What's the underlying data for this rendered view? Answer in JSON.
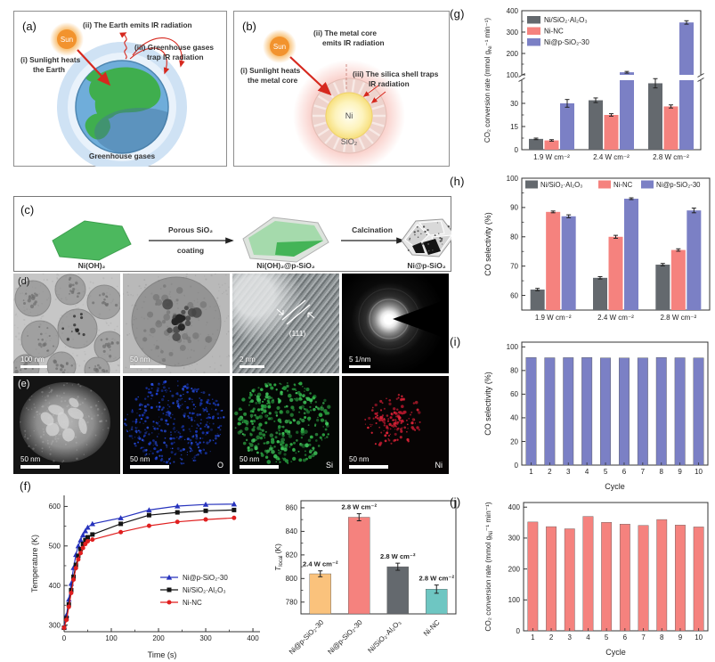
{
  "colors": {
    "gray": "#64696e",
    "salmon": "#f5827e",
    "blue": "#7b80c5",
    "orange": "#fac27c",
    "teal": "#6ec6c2",
    "line_blue": "#2733bd",
    "line_black": "#141414",
    "line_red": "#e01f1f",
    "arrow_red": "#d6281e"
  },
  "panel_a": {
    "label": "(a)",
    "sun": "Sun",
    "cap_ii": "(ii) The Earth emits IR radiation",
    "cap_iii_1": "(iii) Greenhouse gases",
    "cap_iii_2": "trap IR radiation",
    "cap_i_1": "(i) Sunlight heats",
    "cap_i_2": "the Earth",
    "bottom": "Greenhouse gases"
  },
  "panel_b": {
    "label": "(b)",
    "sun": "Sun",
    "cap_ii_1": "(ii) The metal core",
    "cap_ii_2": "emits IR radiation",
    "cap_i_1": "(i) Sunlight heats",
    "cap_i_2": "the metal core",
    "cap_iii_1": "(iii) The silica shell traps",
    "cap_iii_2": "IR radiation",
    "core": "Ni",
    "shell": "SiO₂"
  },
  "panel_c": {
    "label": "(c)",
    "s1": "Ni(OH)₂",
    "arrow1_top": "Porous SiO₂",
    "arrow1_bottom": "coating",
    "s2": "Ni(OH)₂@p-SiO₂",
    "arrow2_top": "Calcination",
    "s3": "Ni@p-SiO₂"
  },
  "panel_d": {
    "label": "(d)",
    "scalebars": [
      "100 nm",
      "50 nm",
      "2 nm",
      "5 1/nm"
    ],
    "annotation": "(111)"
  },
  "panel_e": {
    "label": "(e)",
    "scalebars": [
      "50 nm",
      "50 nm",
      "50 nm",
      "50 nm"
    ],
    "elements": [
      "",
      "O",
      "Si",
      "Ni"
    ]
  },
  "panel_f": {
    "label": "(f)"
  },
  "panel_g": {
    "label": "(g)"
  },
  "panel_h": {
    "label": "(h)"
  },
  "panel_i": {
    "label": "(i)"
  },
  "panel_j": {
    "label": "(j)"
  },
  "chart_data": [
    {
      "id": "f_line",
      "type": "line",
      "xlabel": "Time (s)",
      "ylabel": "Temperature (K)",
      "xlim": [
        0,
        415
      ],
      "ylim": [
        283,
        628
      ],
      "xticks": [
        0,
        100,
        200,
        300,
        400
      ],
      "xminor": [
        50,
        150,
        250,
        350
      ],
      "yticks": [
        300,
        400,
        500,
        600
      ],
      "yminor": [
        350,
        450,
        550
      ],
      "x": [
        0,
        5,
        10,
        15,
        20,
        25,
        30,
        35,
        40,
        45,
        50,
        60,
        120,
        180,
        240,
        300,
        360
      ],
      "series": [
        {
          "name": "Ni@p-SiO₂-30",
          "color": "line_blue",
          "marker": "triangle",
          "y": [
            295,
            325,
            365,
            405,
            445,
            478,
            500,
            515,
            528,
            538,
            547,
            556,
            571,
            591,
            601,
            605,
            606
          ]
        },
        {
          "name": "Ni/SiO₂·Al₂O₃",
          "color": "line_black",
          "marker": "square",
          "y": [
            293,
            317,
            352,
            388,
            422,
            452,
            475,
            492,
            505,
            515,
            522,
            529,
            556,
            578,
            585,
            589,
            591
          ]
        },
        {
          "name": "Ni-NC",
          "color": "line_red",
          "marker": "circle",
          "y": [
            293,
            313,
            346,
            381,
            415,
            444,
            466,
            482,
            495,
            505,
            512,
            516,
            535,
            551,
            561,
            567,
            571
          ]
        }
      ]
    },
    {
      "id": "f_bar",
      "type": "bar",
      "ylabel_segments": [
        {
          "t": "T",
          "italic": true
        },
        {
          "t": "local",
          "sub": true
        },
        {
          "t": " (K)"
        }
      ],
      "ylim": [
        770,
        866
      ],
      "yticks": [
        780,
        800,
        820,
        840,
        860
      ],
      "yminor": [
        790,
        810,
        830,
        850
      ],
      "categories": [
        "Ni@p-SiO₂-30",
        "Ni@p-SiO₂-30",
        "Ni/SiO₂·Al₂O₃",
        "Ni-NC"
      ],
      "values": [
        804,
        852,
        810,
        791
      ],
      "errors": [
        2.5,
        3,
        3,
        3.5
      ],
      "bar_labels": [
        "2.4 W cm⁻²",
        "2.8 W cm⁻²",
        "2.8 W cm⁻²",
        "2.8 W cm⁻²"
      ],
      "bar_colors": [
        "orange",
        "salmon",
        "gray",
        "teal"
      ],
      "rotated_cats": true
    },
    {
      "id": "g",
      "type": "bar-broken",
      "ylabel_segments": [
        {
          "t": "CO₂ conversion rate (mmol g"
        },
        {
          "t": "Ni",
          "sub": true
        },
        {
          "t": "⁻¹ min⁻¹)"
        }
      ],
      "categories": [
        "1.9 W cm⁻²",
        "2.4 W cm⁻²",
        "2.8 W cm⁻²"
      ],
      "lower_ylim": [
        0,
        45
      ],
      "lower_ticks": [
        0,
        15,
        30
      ],
      "lower_minor": [
        7.5,
        22.5,
        37.5
      ],
      "upper_ylim": [
        100,
        400
      ],
      "upper_ticks": [
        100,
        200,
        300,
        400
      ],
      "upper_minor": [
        150,
        250,
        350
      ],
      "series": [
        {
          "name": "Ni/SiO₂·Al₂O₃",
          "color": "gray",
          "values": [
            7,
            32,
            43
          ],
          "errors": [
            0.5,
            1.5,
            3
          ]
        },
        {
          "name": "Ni-NC",
          "color": "salmon",
          "values": [
            6,
            22.5,
            28
          ],
          "errors": [
            0.5,
            0.8,
            1
          ]
        },
        {
          "name": "Ni@p-SiO₂-30",
          "color": "blue",
          "values": [
            30,
            112,
            345
          ],
          "errors": [
            2.5,
            4,
            8
          ]
        }
      ],
      "legend_position": "top-left-vertical"
    },
    {
      "id": "h",
      "type": "bar-group",
      "ylabel": "CO selectivity (%)",
      "ylim": [
        55,
        100
      ],
      "yticks": [
        60,
        70,
        80,
        90,
        100
      ],
      "yminor": [
        65,
        75,
        85,
        95
      ],
      "categories": [
        "1.9 W cm⁻²",
        "2.4 W cm⁻²",
        "2.8 W cm⁻²"
      ],
      "series": [
        {
          "name": "Ni/SiO₂·Al₂O₃",
          "color": "gray",
          "values": [
            62,
            66,
            70.5
          ],
          "errors": [
            0.4,
            0.4,
            0.4
          ]
        },
        {
          "name": "Ni-NC",
          "color": "salmon",
          "values": [
            88.5,
            80,
            75.5
          ],
          "errors": [
            0.3,
            0.5,
            0.4
          ]
        },
        {
          "name": "Ni@p-SiO₂-30",
          "color": "blue",
          "values": [
            87,
            93,
            89
          ],
          "errors": [
            0.5,
            0.3,
            0.8
          ]
        }
      ],
      "legend_position": "top-horizontal"
    },
    {
      "id": "i",
      "type": "bar",
      "ylabel": "CO selectivity (%)",
      "xlabel": "Cycle",
      "ylim": [
        0,
        104
      ],
      "yticks": [
        0,
        20,
        40,
        60,
        80,
        100
      ],
      "categories": [
        "1",
        "2",
        "3",
        "4",
        "5",
        "6",
        "7",
        "8",
        "9",
        "10"
      ],
      "values": [
        91,
        90.8,
        90.9,
        91,
        90.7,
        90.6,
        90.7,
        91,
        90.8,
        90.7
      ],
      "bar_color": "blue"
    },
    {
      "id": "j",
      "type": "bar",
      "ylabel_segments": [
        {
          "t": "CO₂ conversion rate (mmol g"
        },
        {
          "t": "Ni",
          "sub": true
        },
        {
          "t": "⁻¹ min⁻¹)"
        }
      ],
      "xlabel": "Cycle",
      "ylim": [
        0,
        415
      ],
      "yticks": [
        0,
        100,
        200,
        300,
        400
      ],
      "categories": [
        "1",
        "2",
        "3",
        "4",
        "5",
        "6",
        "7",
        "8",
        "9",
        "10"
      ],
      "values": [
        352,
        337,
        330,
        370,
        351,
        345,
        341,
        360,
        342,
        336
      ],
      "bar_color": "salmon"
    }
  ]
}
